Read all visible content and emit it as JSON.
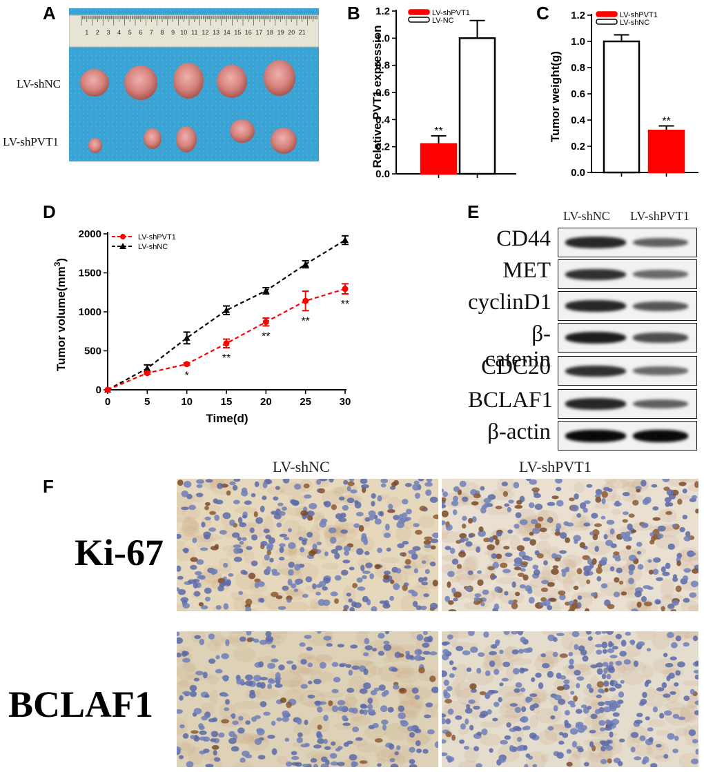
{
  "panels": {
    "A": "A",
    "B": "B",
    "C": "C",
    "D": "D",
    "E": "E",
    "F": "F"
  },
  "panel_a": {
    "row_labels": [
      "LV-shNC",
      "LV-shPVT1"
    ],
    "ruler_numbers": [
      "1",
      "2",
      "3",
      "4",
      "5",
      "6",
      "7",
      "8",
      "9",
      "10",
      "11",
      "12",
      "13",
      "14",
      "15",
      "16",
      "17",
      "18",
      "19",
      "20",
      "21"
    ]
  },
  "panel_e": {
    "columns": [
      "LV-shNC",
      "LV-shPVT1"
    ],
    "rows": [
      {
        "label": "CD44",
        "bands": [
          0.85,
          0.55
        ]
      },
      {
        "label": "MET",
        "bands": [
          0.8,
          0.5
        ]
      },
      {
        "label": "cyclinD1",
        "bands": [
          0.85,
          0.6
        ]
      },
      {
        "label": "β-catenin",
        "bands": [
          0.9,
          0.65
        ]
      },
      {
        "label": "CDC20",
        "bands": [
          0.8,
          0.5
        ]
      },
      {
        "label": "BCLAF1",
        "bands": [
          0.85,
          0.55
        ]
      },
      {
        "label": "β-actin",
        "bands": [
          1.0,
          1.0
        ]
      }
    ]
  },
  "panel_f": {
    "columns": [
      "LV-shNC",
      "LV-shPVT1"
    ],
    "rows": [
      "Ki-67",
      "BCLAF1"
    ]
  },
  "chart_data": [
    {
      "id": "B",
      "type": "bar",
      "categories": [
        "LV-shPVT1",
        "LV-NC"
      ],
      "values": [
        0.22,
        1.0
      ],
      "errors": [
        0.06,
        0.13
      ],
      "significance": [
        "**",
        ""
      ],
      "colors": [
        "#ff0000",
        "#ffffff"
      ],
      "legend": [
        "LV-shPVT1",
        "LV-NC"
      ],
      "ylabel": "Relative PVT1 expression",
      "ylim": [
        0,
        1.2
      ],
      "yticks": [
        "0.0",
        "0.2",
        "0.4",
        "0.6",
        "0.8",
        "1.0",
        "1.2"
      ]
    },
    {
      "id": "C",
      "type": "bar",
      "categories": [
        "LV-shNC",
        "LV-shPVT1"
      ],
      "values": [
        1.0,
        0.32
      ],
      "errors": [
        0.05,
        0.035
      ],
      "significance": [
        "",
        "**"
      ],
      "colors": [
        "#ffffff",
        "#ff0000"
      ],
      "legend": [
        "LV-shPVT1",
        "LV-shNC"
      ],
      "ylabel": "Tumor weight(g)",
      "ylim": [
        0,
        1.2
      ],
      "yticks": [
        "0.0",
        "0.2",
        "0.4",
        "0.6",
        "0.8",
        "1.0",
        "1.2"
      ]
    },
    {
      "id": "D",
      "type": "line",
      "x": [
        0,
        5,
        10,
        15,
        20,
        25,
        30
      ],
      "series": [
        {
          "name": "LV-shPVT1",
          "values": [
            0,
            215,
            330,
            595,
            870,
            1140,
            1295
          ],
          "errors": [
            0,
            15,
            15,
            55,
            50,
            125,
            65
          ],
          "color": "#ff0000",
          "marker": "circle"
        },
        {
          "name": "LV-shNC",
          "values": [
            0,
            275,
            665,
            1020,
            1270,
            1610,
            1920
          ],
          "errors": [
            0,
            45,
            75,
            55,
            40,
            45,
            55
          ],
          "color": "#000000",
          "marker": "triangle"
        }
      ],
      "significance": [
        "",
        "",
        "*",
        "**",
        "**",
        "**",
        "**"
      ],
      "xlabel": "Time(d)",
      "ylabel": "Tumor volume(mm3)",
      "xlim": [
        0,
        30
      ],
      "ylim": [
        0,
        2000
      ],
      "xticks": [
        "0",
        "5",
        "10",
        "15",
        "20",
        "25",
        "30"
      ],
      "yticks": [
        "0",
        "500",
        "1000",
        "1500",
        "2000"
      ]
    }
  ]
}
